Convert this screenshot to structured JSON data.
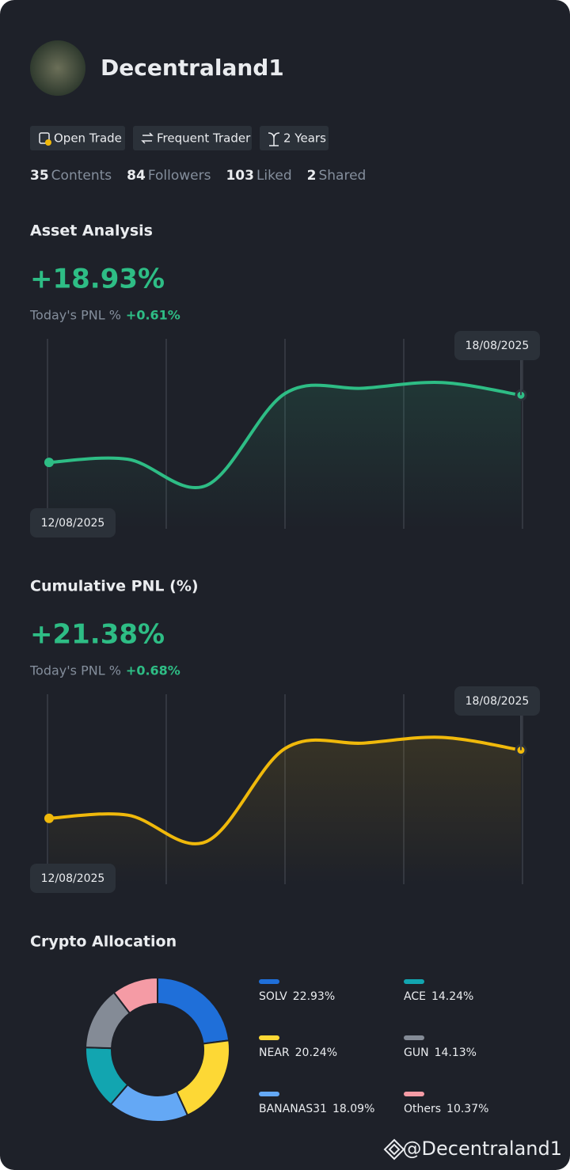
{
  "profile": {
    "name": "Decentraland1",
    "tags": [
      "Open Trade",
      "Frequent Trader",
      "2 Years"
    ],
    "stats": [
      {
        "count": 35,
        "label": "Contents"
      },
      {
        "count": 84,
        "label": "Followers"
      },
      {
        "count": 103,
        "label": "Liked"
      },
      {
        "count": 2,
        "label": "Shared"
      }
    ]
  },
  "chart_data": [
    {
      "type": "line",
      "title": "Asset Analysis",
      "headline": "+18.93%",
      "pnl_label": "Today's PNL %",
      "pnl_value": "+0.61%",
      "start_label": "12/08/2025",
      "end_label": "18/08/2025",
      "color": "#2ebd85",
      "values": [
        0,
        0.9,
        -6.5,
        19.4,
        20.9,
        22.5,
        18.93
      ],
      "ylim": [
        -10,
        25
      ]
    },
    {
      "type": "line",
      "title": "Cumulative PNL (%)",
      "headline": "+21.38%",
      "pnl_label": "Today's PNL %",
      "pnl_value": "+0.68%",
      "start_label": "12/08/2025",
      "end_label": "18/08/2025",
      "color": "#f0b90b",
      "values": [
        0,
        1.0,
        -7.3,
        21.9,
        23.6,
        25.4,
        21.38
      ],
      "ylim": [
        -11,
        28
      ]
    },
    {
      "type": "donut",
      "title": "Crypto Allocation",
      "categories": [
        "SOLV",
        "NEAR",
        "BANANAS31",
        "ACE",
        "GUN",
        "Others"
      ],
      "values": [
        22.93,
        20.24,
        18.09,
        14.24,
        14.13,
        10.37
      ],
      "value_labels": [
        "22.93%",
        "20.24%",
        "18.09%",
        "14.24%",
        "14.13%",
        "10.37%"
      ],
      "colors": [
        "#1f6fd9",
        "#fdd835",
        "#64a8f5",
        "#12a5b0",
        "#848b96",
        "#f59ba5"
      ]
    }
  ],
  "watermark": "@Decentraland1"
}
